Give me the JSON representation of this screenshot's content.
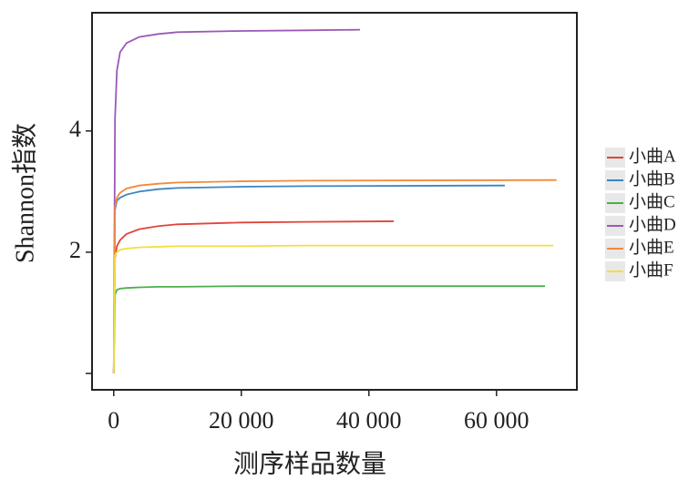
{
  "chart_data": {
    "type": "line",
    "y_label": "Shannon指数",
    "x_label": "测序样品数量",
    "xlim": [
      -3400,
      72600
    ],
    "ylim": [
      -0.27,
      5.95
    ],
    "xticks": [
      0,
      {
        "value": 20000,
        "label": "20 000"
      },
      {
        "value": 40000,
        "label": "40 000"
      },
      {
        "value": 60000,
        "label": "60 000"
      }
    ],
    "yticks": [
      2,
      4
    ],
    "minor_yticks": [
      0
    ],
    "legend": "right",
    "series": [
      {
        "name": "小曲A",
        "color": "#e0453a",
        "x": [
          0,
          200,
          500,
          1000,
          2000,
          4000,
          7000,
          10000,
          20000,
          30000,
          43900
        ],
        "values": [
          0,
          1.9,
          2.1,
          2.2,
          2.3,
          2.38,
          2.43,
          2.46,
          2.49,
          2.5,
          2.51
        ]
      },
      {
        "name": "小曲B",
        "color": "#3d85c0",
        "x": [
          0,
          200,
          500,
          1000,
          2000,
          4000,
          7000,
          10000,
          20000,
          30000,
          61300
        ],
        "values": [
          0,
          2.7,
          2.85,
          2.9,
          2.95,
          3.0,
          3.04,
          3.06,
          3.08,
          3.09,
          3.1
        ]
      },
      {
        "name": "小曲C",
        "color": "#4cae4c",
        "x": [
          0,
          200,
          500,
          1000,
          2000,
          4000,
          7000,
          10000,
          20000,
          30000,
          67600
        ],
        "values": [
          0,
          1.3,
          1.38,
          1.4,
          1.41,
          1.42,
          1.43,
          1.43,
          1.44,
          1.44,
          1.44
        ]
      },
      {
        "name": "小曲D",
        "color": "#9b59b6",
        "x": [
          0,
          200,
          500,
          1000,
          2000,
          4000,
          7000,
          10000,
          20000,
          30000,
          38600
        ],
        "values": [
          0,
          4.2,
          5.0,
          5.3,
          5.45,
          5.55,
          5.6,
          5.63,
          5.65,
          5.66,
          5.67
        ]
      },
      {
        "name": "小曲E",
        "color": "#f08a3c",
        "x": [
          0,
          200,
          500,
          1000,
          2000,
          4000,
          7000,
          10000,
          20000,
          30000,
          69400
        ],
        "values": [
          0,
          2.75,
          2.9,
          2.98,
          3.05,
          3.1,
          3.13,
          3.15,
          3.17,
          3.18,
          3.19
        ]
      },
      {
        "name": "小曲F",
        "color": "#f0e040",
        "x": [
          0,
          200,
          500,
          1000,
          2000,
          4000,
          7000,
          10000,
          20000,
          30000,
          68900
        ],
        "values": [
          0,
          1.95,
          2.0,
          2.04,
          2.06,
          2.08,
          2.09,
          2.1,
          2.1,
          2.11,
          2.11
        ]
      }
    ]
  }
}
